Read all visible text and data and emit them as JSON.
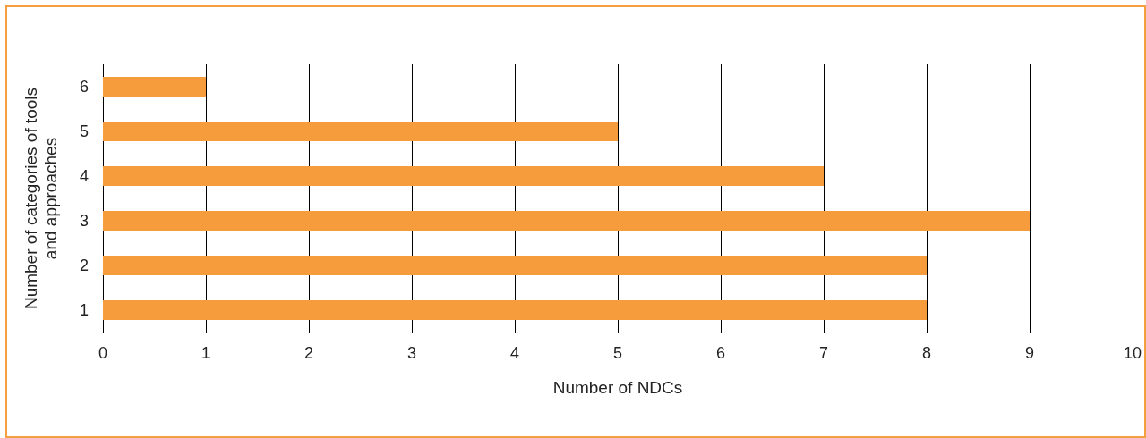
{
  "chart_data": {
    "type": "bar",
    "orientation": "horizontal",
    "xlabel": "Number of NDCs",
    "ylabel": "Number of categories of tools\nand approaches",
    "categories": [
      "6",
      "5",
      "4",
      "3",
      "2",
      "1"
    ],
    "values": [
      1,
      5,
      7,
      9,
      8,
      8
    ],
    "color": "#f79c3d",
    "xlim": [
      0,
      10
    ],
    "xticks": [
      0,
      1,
      2,
      3,
      4,
      5,
      6,
      7,
      8,
      9,
      10
    ],
    "grid": "x"
  }
}
